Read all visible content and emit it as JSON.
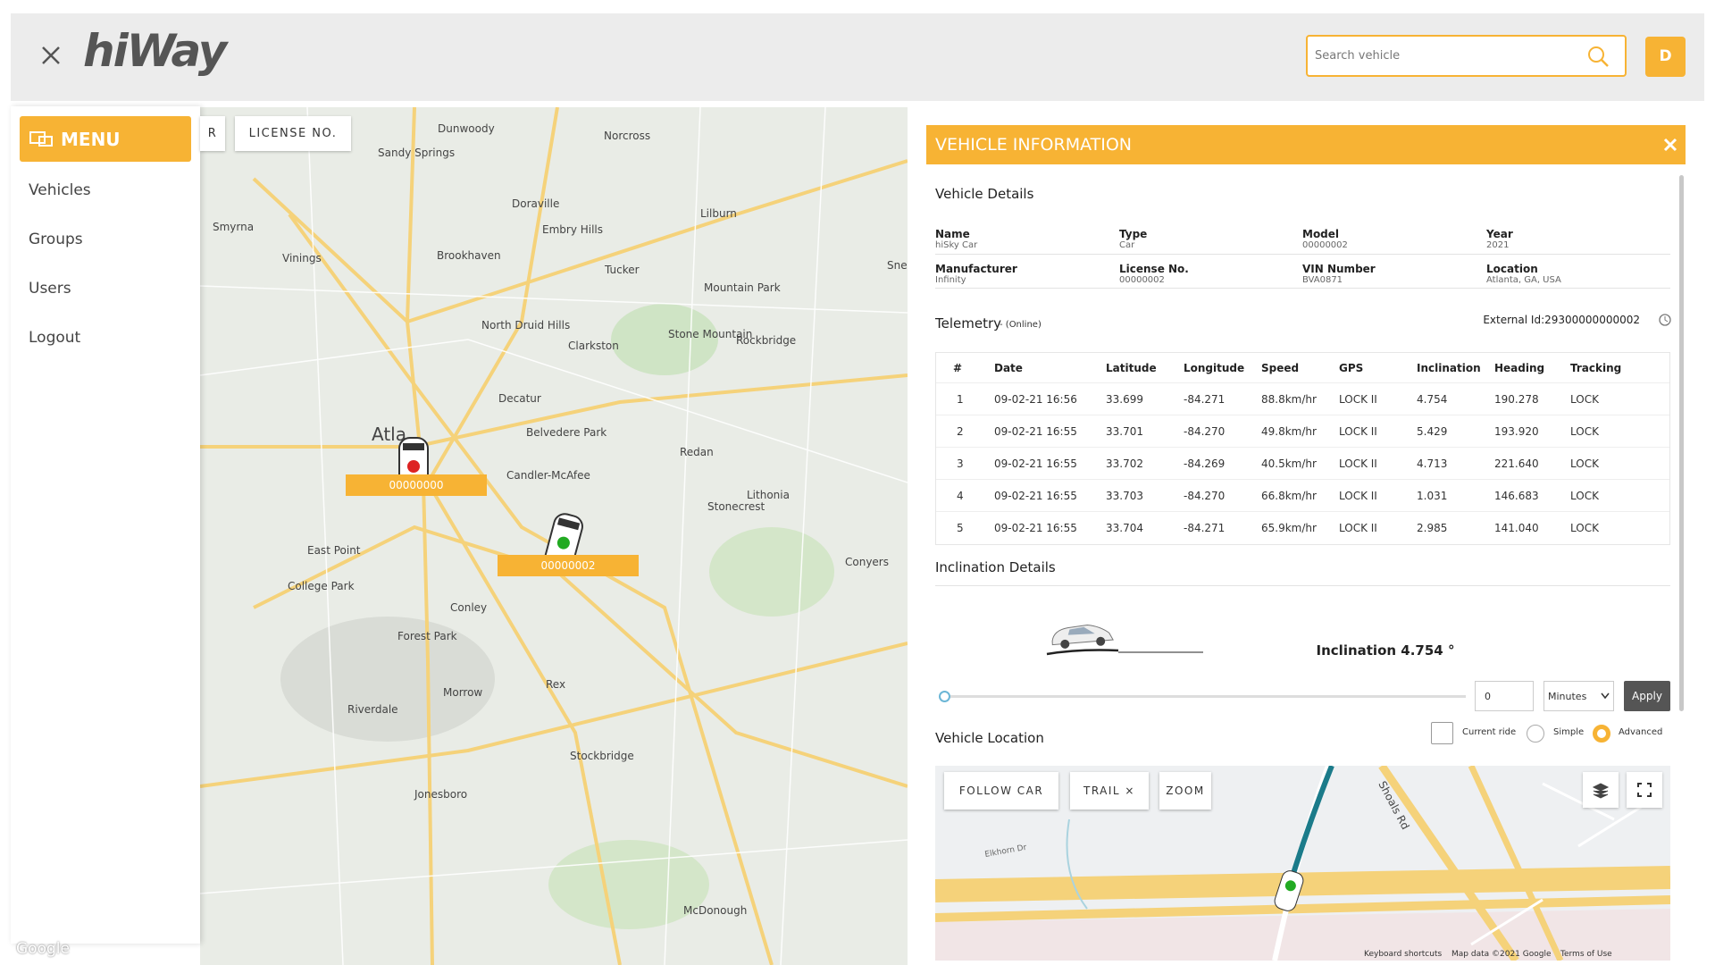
{
  "header": {
    "logo": "hiWay",
    "search_placeholder": "Search vehicle",
    "avatar": "D"
  },
  "menu": {
    "title": "MENU",
    "items": [
      "Vehicles",
      "Groups",
      "Users",
      "Logout"
    ]
  },
  "map": {
    "filters": [
      "R",
      "LICENSE NO."
    ],
    "places": [
      "Dunwoody",
      "Sandy Springs",
      "Norcross",
      "Doraville",
      "Smyrna",
      "Vinings",
      "Brookhaven",
      "Embry Hills",
      "Tucker",
      "Lilburn",
      "Mountain Park",
      "Snellville",
      "North Druid Hills",
      "Clarkston",
      "Stone Mountain",
      "Rockbridge",
      "Decatur",
      "Belvedere Park",
      "Candler-McAfee",
      "Redan",
      "Lithonia",
      "Stonecrest",
      "East Point",
      "College Park",
      "Forest Park",
      "Conley",
      "Morrow",
      "Riverdale",
      "Rex",
      "Stockbridge",
      "Jonesboro",
      "McDonough",
      "Conyers",
      "Atla"
    ],
    "vehicles": [
      "00000000",
      "00000002"
    ],
    "attribution": "Google"
  },
  "panel": {
    "title": "VEHICLE INFORMATION",
    "details_title": "Vehicle Details",
    "fields": [
      {
        "label": "Name",
        "value": "hiSky Car"
      },
      {
        "label": "Type",
        "value": "Car"
      },
      {
        "label": "Model",
        "value": "00000002"
      },
      {
        "label": "Year",
        "value": "2021"
      },
      {
        "label": "Manufacturer",
        "value": "Infinity"
      },
      {
        "label": "License No.",
        "value": "00000002"
      },
      {
        "label": "VIN Number",
        "value": "BVA0871"
      },
      {
        "label": "Location",
        "value": "Atlanta, GA, USA"
      }
    ],
    "telemetry": {
      "title": "Telemetry",
      "status": "- (Online)",
      "external_id": "External Id:29300000000002",
      "columns": [
        "#",
        "Date",
        "Latitude",
        "Longitude",
        "Speed",
        "GPS",
        "Inclination",
        "Heading",
        "Tracking"
      ],
      "rows": [
        [
          "1",
          "09-02-21 16:56",
          "33.699",
          "-84.271",
          "88.8km/hr",
          "LOCK II",
          "4.754",
          "190.278",
          "LOCK"
        ],
        [
          "2",
          "09-02-21 16:55",
          "33.701",
          "-84.270",
          "49.8km/hr",
          "LOCK II",
          "5.429",
          "193.920",
          "LOCK"
        ],
        [
          "3",
          "09-02-21 16:55",
          "33.702",
          "-84.269",
          "40.5km/hr",
          "LOCK II",
          "4.713",
          "221.640",
          "LOCK"
        ],
        [
          "4",
          "09-02-21 16:55",
          "33.703",
          "-84.270",
          "66.8km/hr",
          "LOCK II",
          "1.031",
          "146.683",
          "LOCK"
        ],
        [
          "5",
          "09-02-21 16:55",
          "33.704",
          "-84.271",
          "65.9km/hr",
          "LOCK II",
          "2.985",
          "141.040",
          "LOCK"
        ]
      ]
    },
    "inclination": {
      "title": "Inclination Details",
      "text": "Inclination 4.754 °",
      "input": "0",
      "unit": "Minutes",
      "apply": "Apply"
    },
    "location": {
      "title": "Vehicle Location",
      "current_ride": "Current ride",
      "simple": "Simple",
      "advanced": "Advanced",
      "buttons": [
        "FOLLOW CAR",
        "TRAIL ×",
        "ZOOM"
      ],
      "roads": [
        "Shoals Rd",
        "Elkhorn Dr"
      ],
      "footer": [
        "Keyboard shortcuts",
        "Map data ©2021 Google",
        "Terms of Use"
      ]
    }
  }
}
